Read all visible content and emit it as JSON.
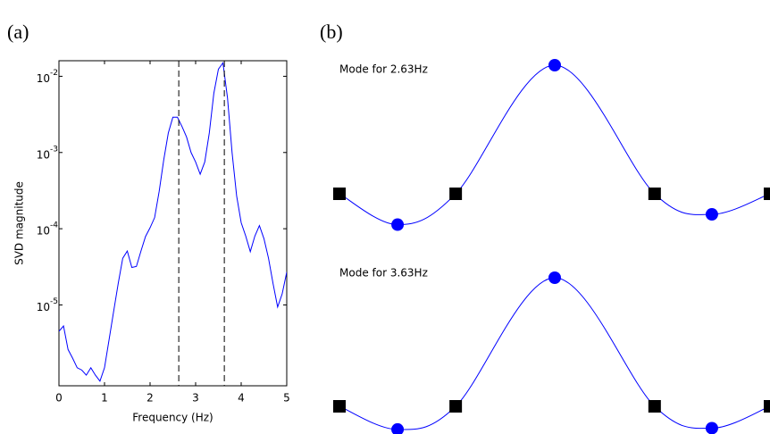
{
  "chart_data": [
    {
      "type": "line",
      "panel": "(a)",
      "xlabel": "Frequency (Hz)",
      "ylabel": "SVD magnitude",
      "x": [
        0,
        0.1,
        0.2,
        0.3,
        0.4,
        0.5,
        0.6,
        0.7,
        0.8,
        0.9,
        1.0,
        1.1,
        1.2,
        1.3,
        1.4,
        1.5,
        1.6,
        1.7,
        1.8,
        1.9,
        2.0,
        2.1,
        2.2,
        2.3,
        2.4,
        2.5,
        2.6,
        2.7,
        2.8,
        2.9,
        3.0,
        3.1,
        3.2,
        3.3,
        3.4,
        3.5,
        3.6,
        3.7,
        3.8,
        3.9,
        4.0,
        4.1,
        4.2,
        4.3,
        4.4,
        4.5,
        4.6,
        4.7,
        4.8,
        4.9,
        5.0
      ],
      "series": [
        {
          "color": "#0000ff",
          "values": [
            4.5e-06,
            5.3e-06,
            2.6e-06,
            2e-06,
            1.5e-06,
            1.4e-06,
            1.2e-06,
            1.5e-06,
            1.2e-06,
            1e-06,
            1.5e-06,
            3.5e-06,
            8.2e-06,
            1.9e-05,
            4.1e-05,
            5.1e-05,
            3.1e-05,
            3.2e-05,
            5.1e-05,
            7.9e-05,
            0.000103,
            0.00014,
            0.00031,
            0.0008,
            0.0018,
            0.0029,
            0.0029,
            0.0022,
            0.0016,
            0.001,
            0.00075,
            0.00052,
            0.00075,
            0.0018,
            0.006,
            0.0124,
            0.015,
            0.0052,
            0.001,
            0.00027,
            0.00012,
            8e-05,
            5e-05,
            8e-05,
            0.00011,
            7.4e-05,
            4.1e-05,
            1.9e-05,
            9.4e-06,
            1.4e-05,
            2.7e-05
          ]
        }
      ],
      "vlines": [
        2.63,
        3.63
      ],
      "xlim": [
        0,
        5
      ],
      "xticks": [
        0,
        1,
        2,
        3,
        4,
        5
      ],
      "ylog": true,
      "ylim": [
        8.7e-07,
        0.016
      ],
      "yticks": [
        {
          "value": 0.01,
          "label": "10",
          "exponent": "-2"
        },
        {
          "value": 0.001,
          "label": "10",
          "exponent": "-3"
        },
        {
          "value": 0.0001,
          "label": "10",
          "exponent": "-4"
        },
        {
          "value": 1e-05,
          "label": "10",
          "exponent": "-5"
        }
      ]
    },
    {
      "type": "mode-shape",
      "panel": "(b)",
      "title": "Mode for 2.63Hz",
      "color": "#0000ff",
      "x": [
        0,
        0.135,
        0.27,
        0.5,
        0.732,
        0.865,
        1.0
      ],
      "values": [
        0,
        -0.24,
        0,
        1,
        0,
        -0.16,
        0
      ],
      "markers": [
        "square",
        "circle",
        "square",
        "circle",
        "square",
        "circle",
        "square"
      ]
    },
    {
      "type": "mode-shape",
      "title": "Mode for 3.63Hz",
      "color": "#0000ff",
      "x": [
        0,
        0.135,
        0.27,
        0.5,
        0.732,
        0.865,
        1.0
      ],
      "values": [
        0,
        -0.18,
        0,
        1,
        0,
        -0.17,
        0
      ],
      "markers": [
        "square",
        "circle",
        "square",
        "circle",
        "square",
        "circle",
        "square"
      ]
    }
  ]
}
